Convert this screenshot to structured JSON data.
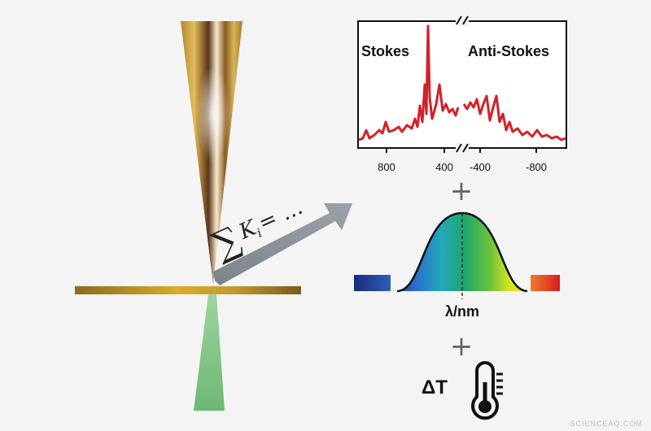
{
  "spectrum": {
    "stokes_label": "Stokes",
    "antistokes_label": "Anti-Stokes",
    "ticks_left": [
      "800",
      "400"
    ],
    "ticks_right": [
      "-400",
      "-800"
    ]
  },
  "formula": {
    "sum": "∑",
    "body": "K",
    "sub": "i",
    "rest": " = …"
  },
  "plus_1": "+",
  "plus_2": "+",
  "gaussian": {
    "axis_label": "λ/nm"
  },
  "temperature": {
    "label": "ΔT",
    "icon": "thermometer-icon"
  },
  "watermark": "SCIENCEAQ.COM",
  "colors": {
    "tip_gold": "#c8a040",
    "tip_dark": "#5a3416",
    "substrate": "#b98a2c",
    "laser_green": "#79c07e",
    "spectrum_red": "#d42027",
    "arrow_gray": "#8a9096",
    "curve_outline": "#111111"
  }
}
